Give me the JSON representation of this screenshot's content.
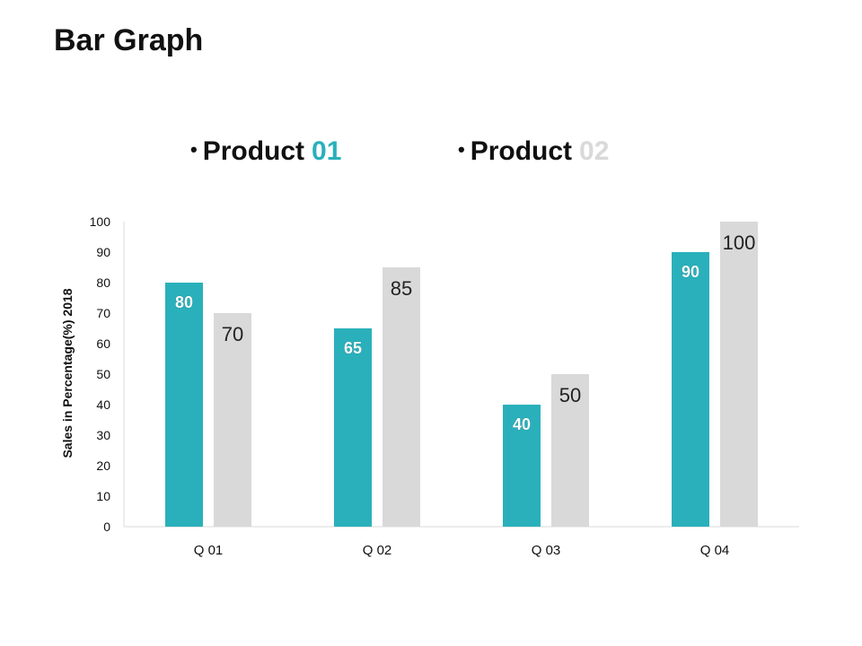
{
  "slide": {
    "title": "Bar Graph"
  },
  "legend": {
    "items": [
      {
        "word": "Product",
        "number": "01",
        "number_color": "#2AB0BB"
      },
      {
        "word": "Product",
        "number": "02",
        "number_color": "#D9D9D9"
      }
    ]
  },
  "chart_data": {
    "type": "bar",
    "categories": [
      "Q 01",
      "Q 02",
      "Q 03",
      "Q 04"
    ],
    "series": [
      {
        "values": [
          80,
          65,
          40,
          90
        ],
        "color": "#2AB0BB",
        "label_color": "#ffffff"
      },
      {
        "values": [
          70,
          85,
          50,
          100
        ],
        "color": "#D9D9D9",
        "label_color": "#222222"
      }
    ],
    "ylabel": "Sales in Percentage(%) 2018",
    "ylim": [
      0,
      100
    ],
    "yticks": [
      0,
      10,
      20,
      30,
      40,
      50,
      60,
      70,
      80,
      90,
      100
    ],
    "grid": false
  }
}
